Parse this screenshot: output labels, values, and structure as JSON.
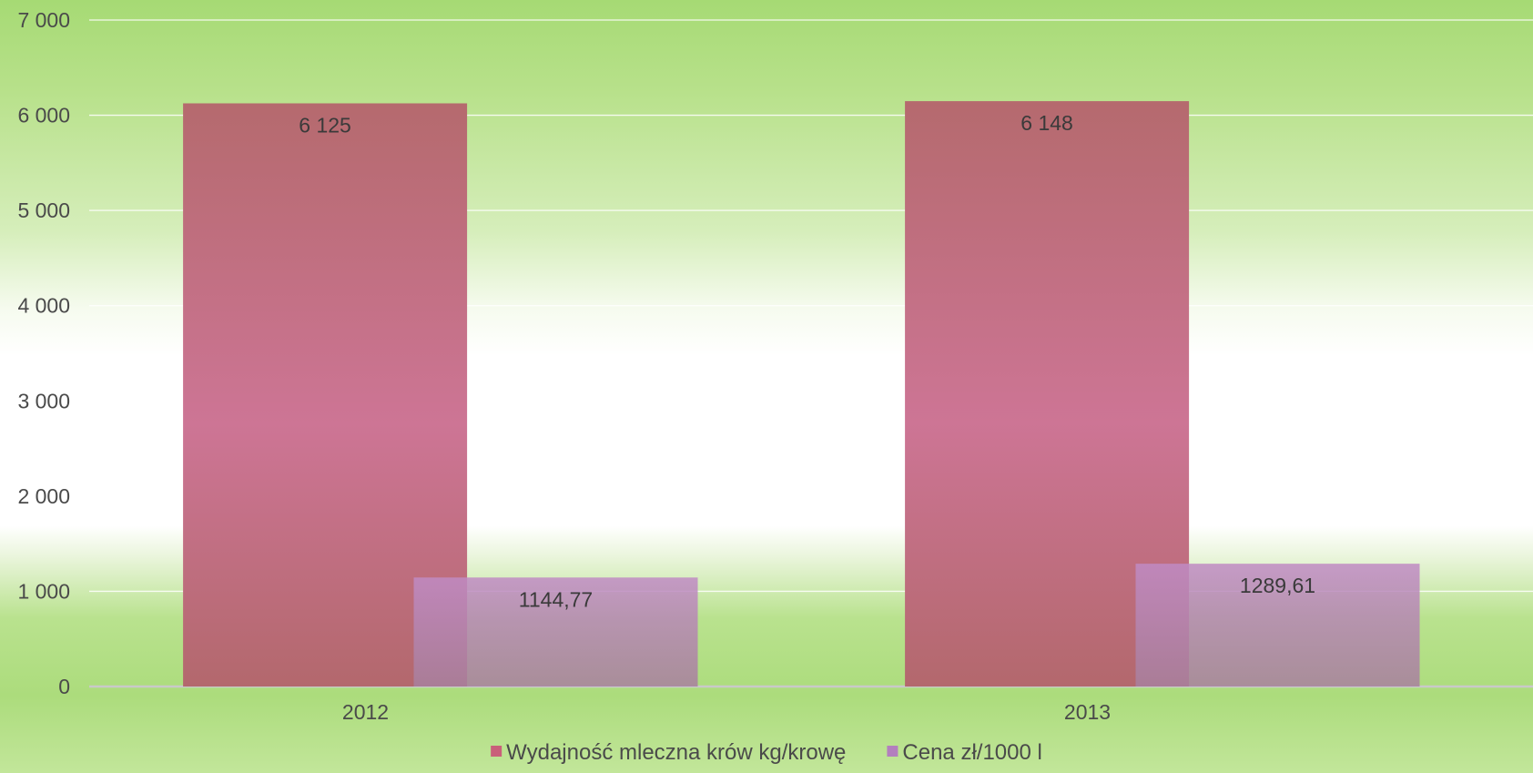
{
  "chart_data": {
    "type": "bar",
    "categories": [
      "2012",
      "2013"
    ],
    "series": [
      {
        "name": "Wydajność mleczna krów kg/krowę",
        "values": [
          6125,
          6148
        ],
        "labels": [
          "6 125",
          "6 148"
        ],
        "color": "#c9607a"
      },
      {
        "name": "Cena zł/1000 l",
        "values": [
          1144.77,
          1289.61
        ],
        "labels": [
          "1144,77",
          "1289,61"
        ],
        "color": "#b37fbe"
      }
    ],
    "y_ticks": [
      {
        "value": 0,
        "label": "0"
      },
      {
        "value": 1000,
        "label": "1 000"
      },
      {
        "value": 2000,
        "label": "2 000"
      },
      {
        "value": 3000,
        "label": "3 000"
      },
      {
        "value": 4000,
        "label": "4 000"
      },
      {
        "value": 5000,
        "label": "5 000"
      },
      {
        "value": 6000,
        "label": "6 000"
      },
      {
        "value": 7000,
        "label": "7 000"
      }
    ],
    "ylim": [
      0,
      7000
    ],
    "grid": true,
    "legend_position": "bottom",
    "title": "",
    "xlabel": "",
    "ylabel": ""
  }
}
